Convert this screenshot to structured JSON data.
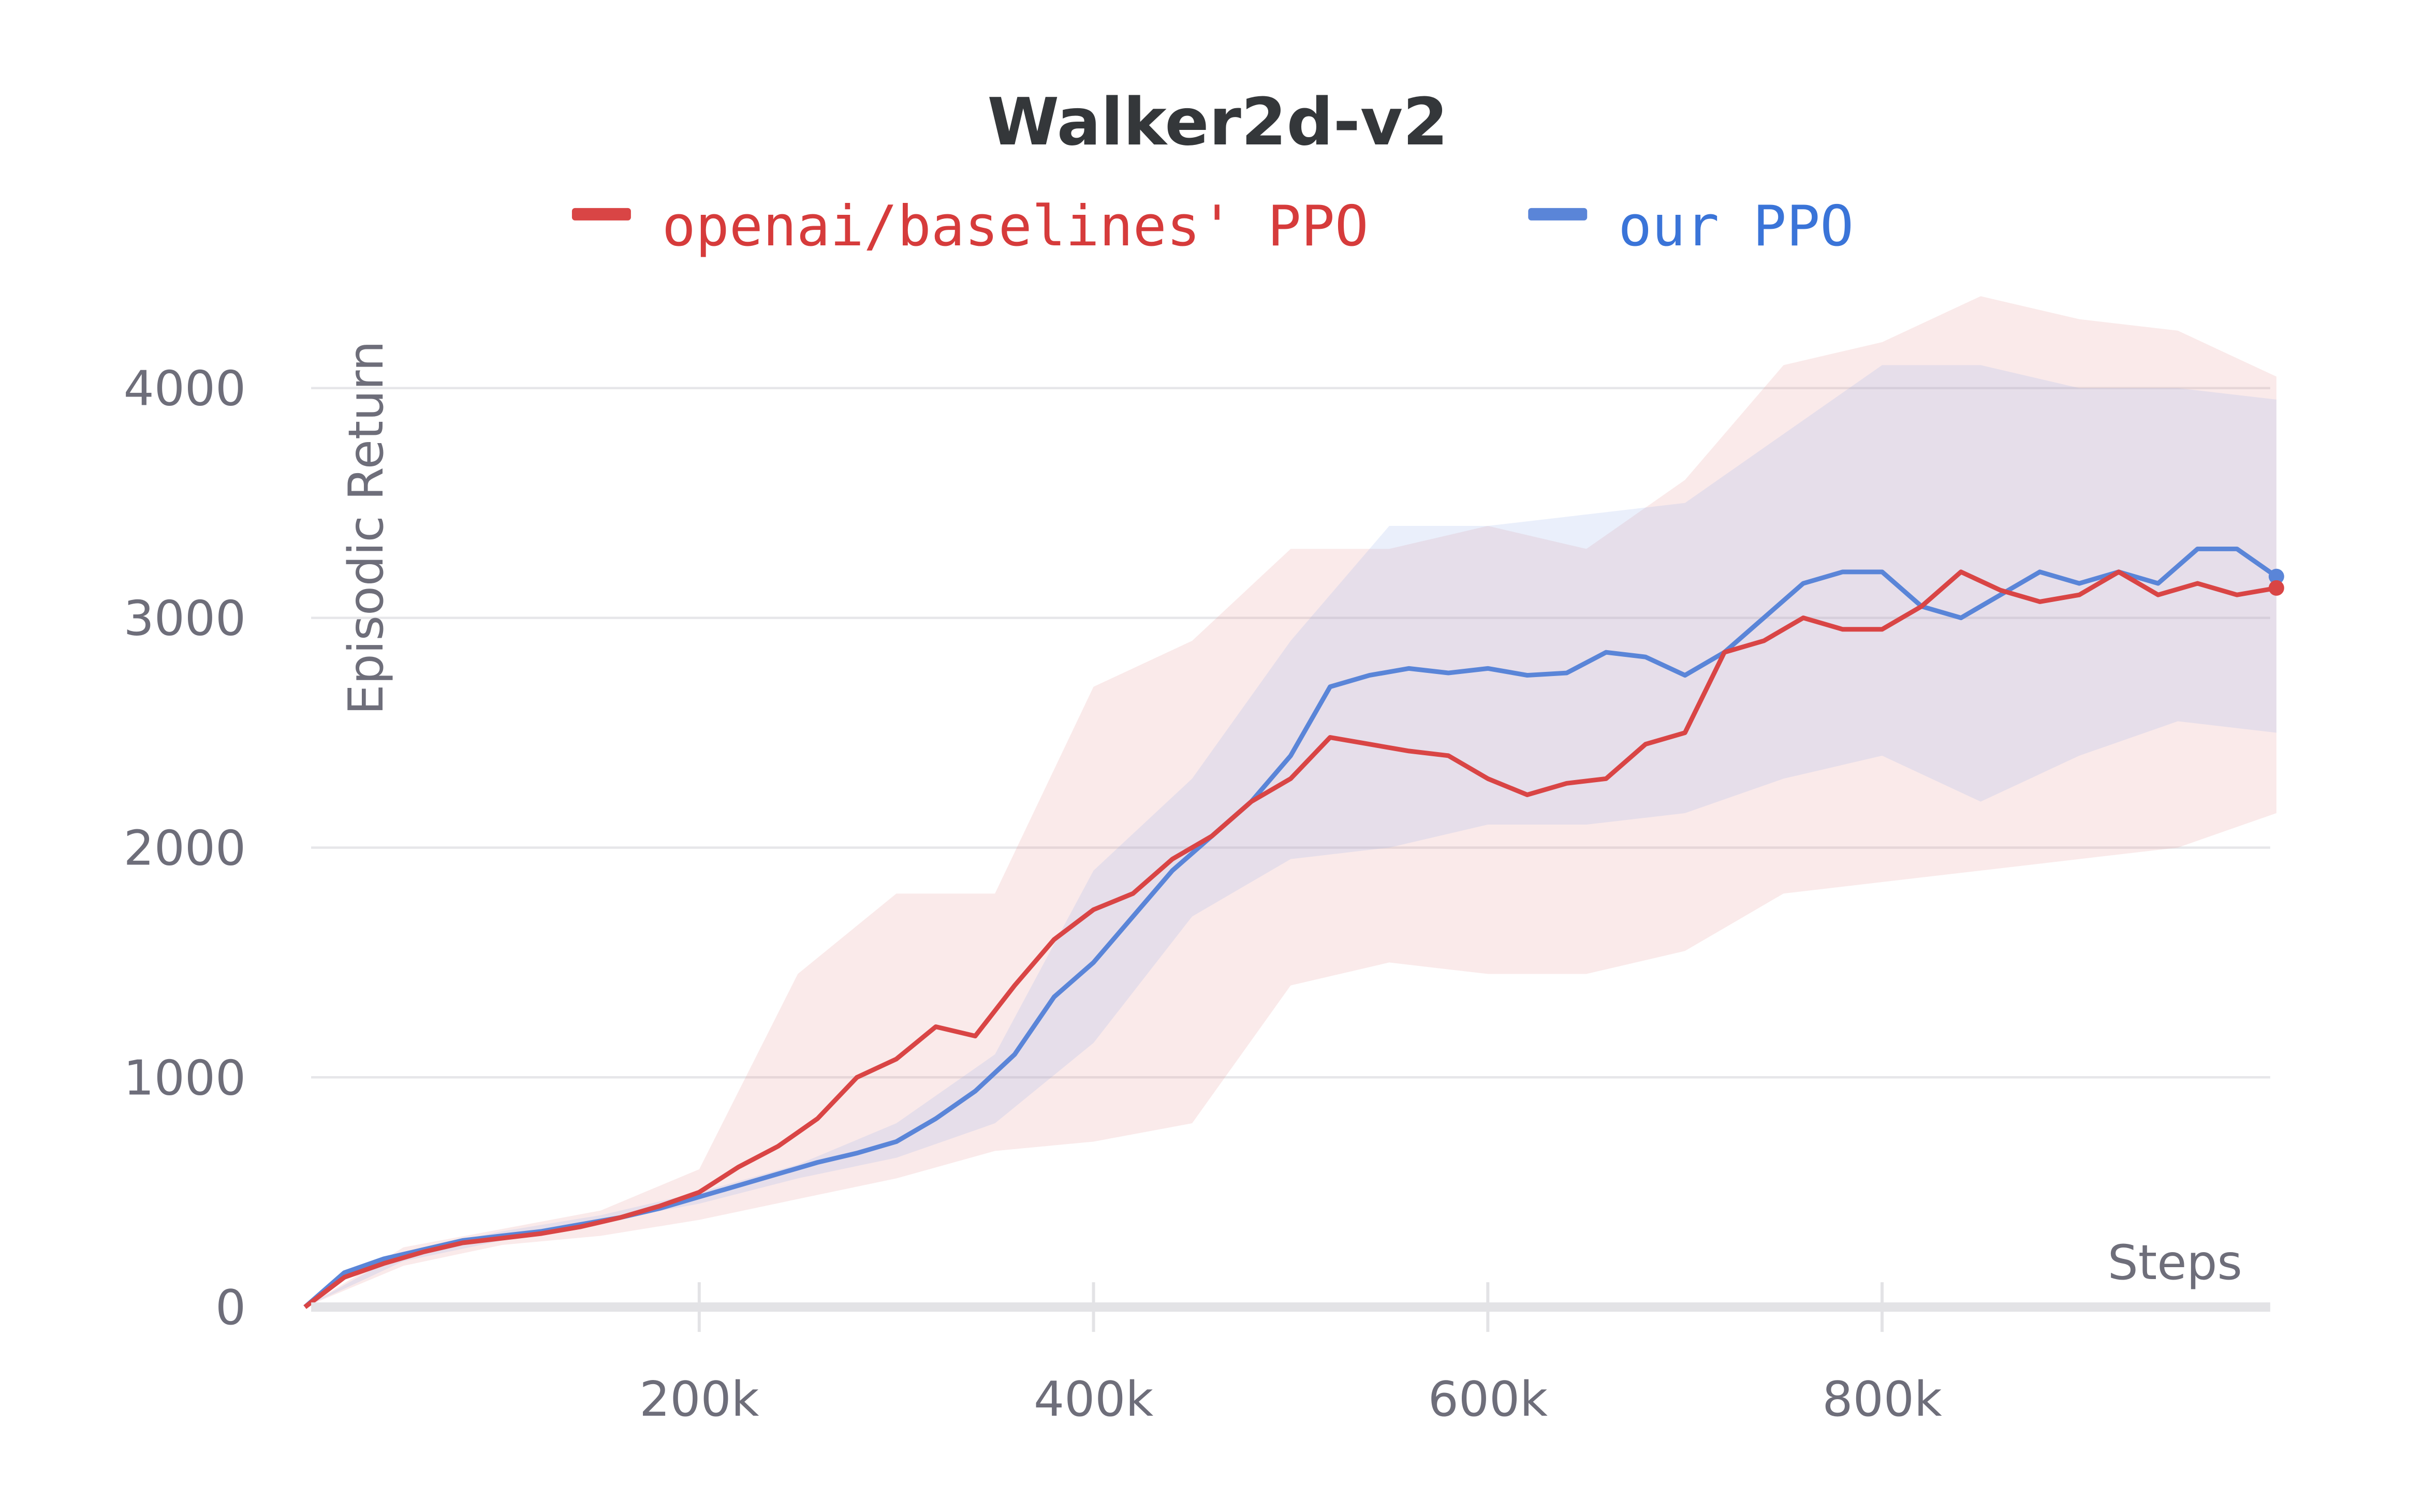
{
  "chart_data": {
    "type": "line",
    "title": "Walker2d-v2",
    "xlabel": "Steps",
    "ylabel": "Episodic Return",
    "xlim": [
      0,
      1000000
    ],
    "ylim": [
      0,
      4000
    ],
    "grid": true,
    "legend_position": "top-center",
    "x_ticks": [
      200000,
      400000,
      600000,
      800000
    ],
    "x_tick_labels": [
      "200k",
      "400k",
      "600k",
      "800k"
    ],
    "y_ticks": [
      0,
      1000,
      2000,
      3000,
      4000
    ],
    "y_tick_labels": [
      "0",
      "1000",
      "2000",
      "3000",
      "4000"
    ],
    "x": [
      0,
      20000,
      40000,
      60000,
      80000,
      100000,
      120000,
      140000,
      160000,
      180000,
      200000,
      220000,
      240000,
      260000,
      280000,
      300000,
      320000,
      340000,
      360000,
      380000,
      400000,
      420000,
      440000,
      460000,
      480000,
      500000,
      520000,
      540000,
      560000,
      580000,
      600000,
      620000,
      640000,
      660000,
      680000,
      700000,
      720000,
      740000,
      760000,
      780000,
      800000,
      820000,
      840000,
      860000,
      880000,
      900000,
      920000,
      940000,
      960000,
      980000,
      1000000
    ],
    "band_x": [
      0,
      50000,
      100000,
      150000,
      200000,
      250000,
      300000,
      350000,
      400000,
      450000,
      500000,
      550000,
      600000,
      650000,
      700000,
      750000,
      800000,
      850000,
      900000,
      950000,
      1000000
    ],
    "series": [
      {
        "name": "openai/baselines' PPO",
        "color": "#d94545",
        "values": [
          0,
          130,
          190,
          240,
          280,
          300,
          320,
          350,
          390,
          440,
          500,
          610,
          700,
          820,
          1000,
          1080,
          1220,
          1180,
          1400,
          1600,
          1730,
          1800,
          1950,
          2050,
          2200,
          2300,
          2480,
          2450,
          2420,
          2400,
          2300,
          2230,
          2280,
          2300,
          2450,
          2500,
          2850,
          2900,
          3000,
          2950,
          2950,
          3050,
          3200,
          3120,
          3070,
          3100,
          3200,
          3100,
          3150,
          3100,
          3130
        ],
        "band_upper": [
          0,
          260,
          340,
          420,
          600,
          1450,
          1800,
          1800,
          2700,
          2900,
          3300,
          3300,
          3400,
          3300,
          3600,
          4100,
          4200,
          4400,
          4300,
          4250,
          4050
        ],
        "band_lower": [
          0,
          180,
          270,
          310,
          380,
          470,
          560,
          680,
          720,
          800,
          1400,
          1500,
          1450,
          1450,
          1550,
          1800,
          1850,
          1900,
          1950,
          2000,
          2150
        ]
      },
      {
        "name": "our PPO",
        "color": "#5a85d8",
        "values": [
          0,
          150,
          210,
          250,
          290,
          310,
          330,
          360,
          390,
          430,
          480,
          530,
          580,
          630,
          670,
          720,
          820,
          940,
          1100,
          1350,
          1500,
          1700,
          1900,
          2050,
          2200,
          2400,
          2700,
          2750,
          2780,
          2760,
          2780,
          2750,
          2760,
          2850,
          2830,
          2750,
          2850,
          3000,
          3150,
          3200,
          3200,
          3050,
          3000,
          3100,
          3200,
          3150,
          3200,
          3150,
          3300,
          3300,
          3180
        ],
        "band_upper": [
          0,
          240,
          330,
          400,
          500,
          620,
          800,
          1100,
          1900,
          2300,
          2900,
          3400,
          3400,
          3450,
          3500,
          3800,
          4100,
          4100,
          4000,
          4000,
          3950
        ],
        "band_lower": [
          0,
          200,
          290,
          370,
          450,
          560,
          650,
          800,
          1150,
          1700,
          1950,
          2000,
          2100,
          2100,
          2150,
          2300,
          2400,
          2200,
          2400,
          2550,
          2500
        ]
      }
    ]
  }
}
